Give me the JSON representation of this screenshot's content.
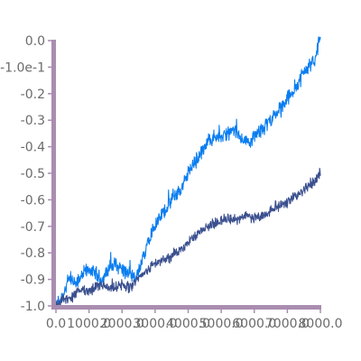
{
  "chart_data": {
    "type": "line",
    "title": "",
    "xlabel": "",
    "ylabel": "",
    "xlim": [
      0,
      8000
    ],
    "ylim": [
      -1.0,
      0.0
    ],
    "grid": false,
    "legend": "none",
    "x_tick_labels": [
      "0.0",
      "1000.0",
      "2000.0",
      "3000.0",
      "4000.0",
      "5000.0",
      "6000.0",
      "7000.0",
      "8000.0"
    ],
    "x_tick_values": [
      0,
      1000,
      2000,
      3000,
      4000,
      5000,
      6000,
      7000,
      8000
    ],
    "y_tick_labels": [
      "0.0",
      "-1.0e-1",
      "-0.2",
      "-0.3",
      "-0.4",
      "-0.5",
      "-0.6",
      "-0.7",
      "-0.8",
      "-0.9",
      "-1.0"
    ],
    "y_tick_values": [
      0.0,
      -0.1,
      -0.2,
      -0.3,
      -0.4,
      -0.5,
      -0.6,
      -0.7,
      -0.8,
      -0.9,
      -1.0
    ],
    "axis_color": "#a98db0",
    "series": [
      {
        "color": "#0a7df0",
        "noise": 0.018,
        "x": [
          0,
          200,
          400,
          600,
          800,
          1000,
          1200,
          1400,
          1600,
          1800,
          2000,
          2200,
          2400,
          2600,
          2800,
          3000,
          3200,
          3400,
          3600,
          3800,
          4000,
          4200,
          4400,
          4600,
          4800,
          5000,
          5200,
          5400,
          5600,
          5800,
          6000,
          6200,
          6400,
          6600,
          6800,
          7000,
          7200,
          7400,
          7600,
          7800,
          8000
        ],
        "y": [
          -1.0,
          -0.96,
          -0.9,
          -0.92,
          -0.88,
          -0.86,
          -0.88,
          -0.9,
          -0.86,
          -0.84,
          -0.86,
          -0.88,
          -0.9,
          -0.84,
          -0.74,
          -0.7,
          -0.66,
          -0.62,
          -0.58,
          -0.56,
          -0.5,
          -0.46,
          -0.42,
          -0.38,
          -0.36,
          -0.36,
          -0.35,
          -0.34,
          -0.37,
          -0.38,
          -0.36,
          -0.34,
          -0.31,
          -0.28,
          -0.26,
          -0.22,
          -0.18,
          -0.14,
          -0.1,
          -0.08,
          0.0
        ]
      },
      {
        "color": "#3a4f8e",
        "noise": 0.012,
        "x": [
          0,
          200,
          400,
          600,
          800,
          1000,
          1200,
          1400,
          1600,
          1800,
          2000,
          2200,
          2400,
          2600,
          2800,
          3000,
          3200,
          3400,
          3600,
          3800,
          4000,
          4200,
          4400,
          4600,
          4800,
          5000,
          5200,
          5400,
          5600,
          5800,
          6000,
          6200,
          6400,
          6600,
          6800,
          7000,
          7200,
          7400,
          7600,
          7800,
          8000
        ],
        "y": [
          -1.0,
          -0.98,
          -0.97,
          -0.95,
          -0.94,
          -0.95,
          -0.93,
          -0.92,
          -0.94,
          -0.93,
          -0.92,
          -0.93,
          -0.91,
          -0.88,
          -0.86,
          -0.84,
          -0.83,
          -0.82,
          -0.8,
          -0.79,
          -0.76,
          -0.74,
          -0.72,
          -0.7,
          -0.69,
          -0.68,
          -0.67,
          -0.68,
          -0.67,
          -0.66,
          -0.67,
          -0.66,
          -0.65,
          -0.63,
          -0.62,
          -0.61,
          -0.59,
          -0.57,
          -0.55,
          -0.53,
          -0.5
        ]
      }
    ]
  }
}
